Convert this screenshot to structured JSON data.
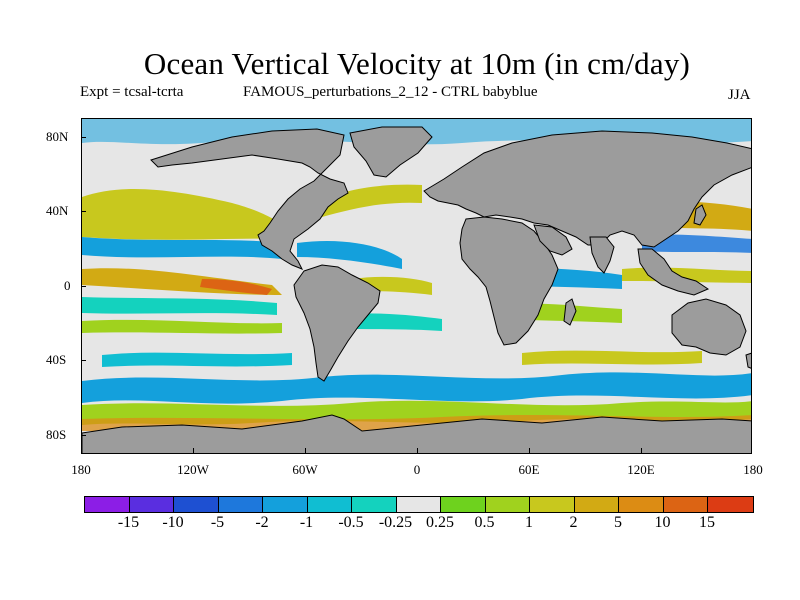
{
  "title": "Ocean Vertical Velocity at 10m (in cm/day)",
  "subtitle_left": "Expt = tcsal-tcrta",
  "subtitle_center": "FAMOUS_perturbations_2_12 - CTRL babyblue",
  "season": "JJA",
  "y_axis": {
    "ticks": [
      "80N",
      "40N",
      "0",
      "40S",
      "80S"
    ]
  },
  "x_axis": {
    "ticks": [
      "180",
      "120W",
      "60W",
      "0",
      "60E",
      "120E",
      "180"
    ]
  },
  "map_data": {
    "projection": "cylindrical equidistant",
    "lon_range": [
      -180,
      180
    ],
    "lat_range": [
      -90,
      90
    ],
    "land_color": "#9c9c9c",
    "ocean_background": "#e6e6e6"
  },
  "colorbar": {
    "colors": [
      "#8c1ee6",
      "#5a2ee0",
      "#1e50d2",
      "#1e78dc",
      "#14a0dc",
      "#10bed2",
      "#14d2be",
      "#e6e6e6",
      "#6ed21e",
      "#a0d21e",
      "#c8c81e",
      "#d2aa14",
      "#dc8c14",
      "#dc6414",
      "#dc3c14"
    ],
    "labels": [
      "-15",
      "-10",
      "-5",
      "-2",
      "-1",
      "-0.5",
      "-0.25",
      "0.25",
      "0.5",
      "1",
      "2",
      "5",
      "10",
      "15"
    ]
  }
}
